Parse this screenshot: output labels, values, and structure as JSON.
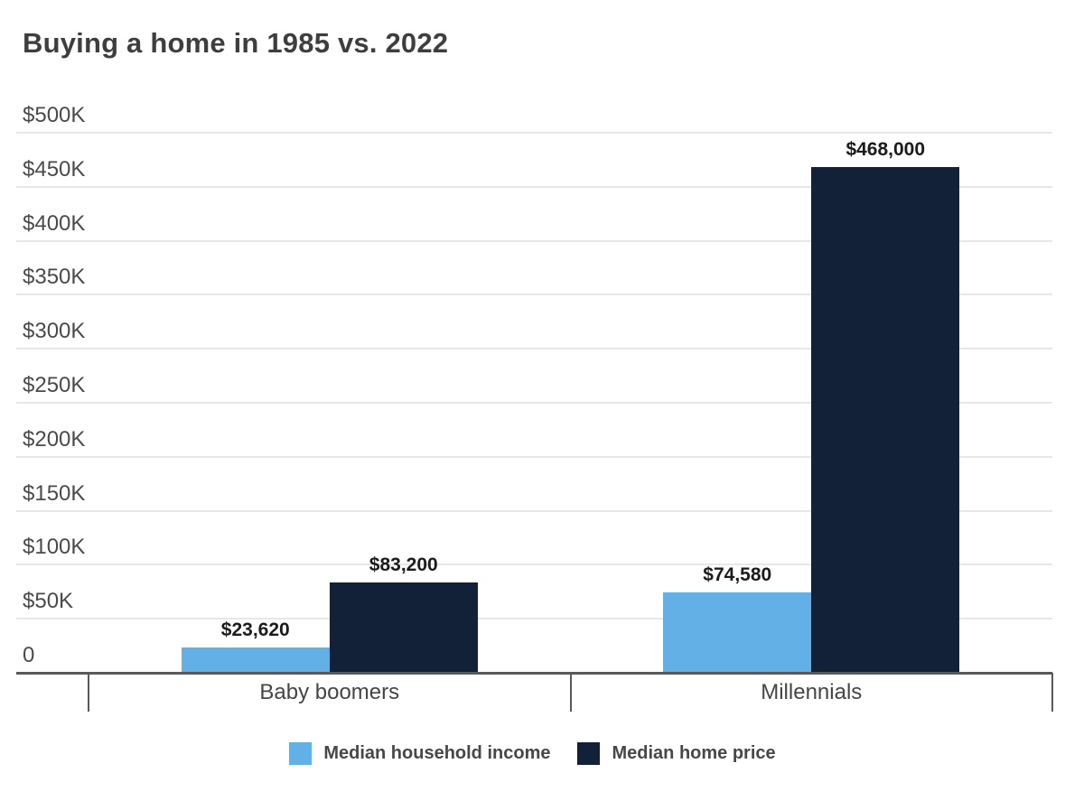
{
  "title": "Buying a home in 1985 vs. 2022",
  "colors": {
    "income_series": "#62b0e6",
    "price_series": "#122138",
    "gridline": "#e7e7e7",
    "axis": "#58595b",
    "title_text": "#3e3e3e",
    "background": "#ffffff"
  },
  "chart_data": {
    "type": "bar",
    "title": "Buying a home in 1985 vs. 2022",
    "xlabel": "",
    "ylabel": "",
    "categories": [
      "Baby boomers",
      "Millennials"
    ],
    "series": [
      {
        "name": "Median household income",
        "color": "#62b0e6",
        "values": [
          23620,
          74580
        ],
        "value_labels": [
          "$23,620",
          "$74,580"
        ]
      },
      {
        "name": "Median home price",
        "color": "#122138",
        "values": [
          83200,
          468000
        ],
        "value_labels": [
          "$83,200",
          "$468,000"
        ]
      }
    ],
    "ylim": [
      0,
      500000
    ],
    "y_ticks": [
      {
        "value": 500000,
        "label": "$500K"
      },
      {
        "value": 450000,
        "label": "$450K"
      },
      {
        "value": 400000,
        "label": "$400K"
      },
      {
        "value": 350000,
        "label": "$350K"
      },
      {
        "value": 300000,
        "label": "$300K"
      },
      {
        "value": 250000,
        "label": "$250K"
      },
      {
        "value": 200000,
        "label": "$200K"
      },
      {
        "value": 150000,
        "label": "$150K"
      },
      {
        "value": 100000,
        "label": "$100K"
      },
      {
        "value": 50000,
        "label": "$50K"
      },
      {
        "value": 0,
        "label": "0"
      }
    ],
    "grid": true,
    "bar_value_labels": true,
    "legend_position": "bottom"
  },
  "legend": {
    "items": [
      {
        "label": "Median household income",
        "color": "#62b0e6"
      },
      {
        "label": "Median home price",
        "color": "#122138"
      }
    ]
  }
}
